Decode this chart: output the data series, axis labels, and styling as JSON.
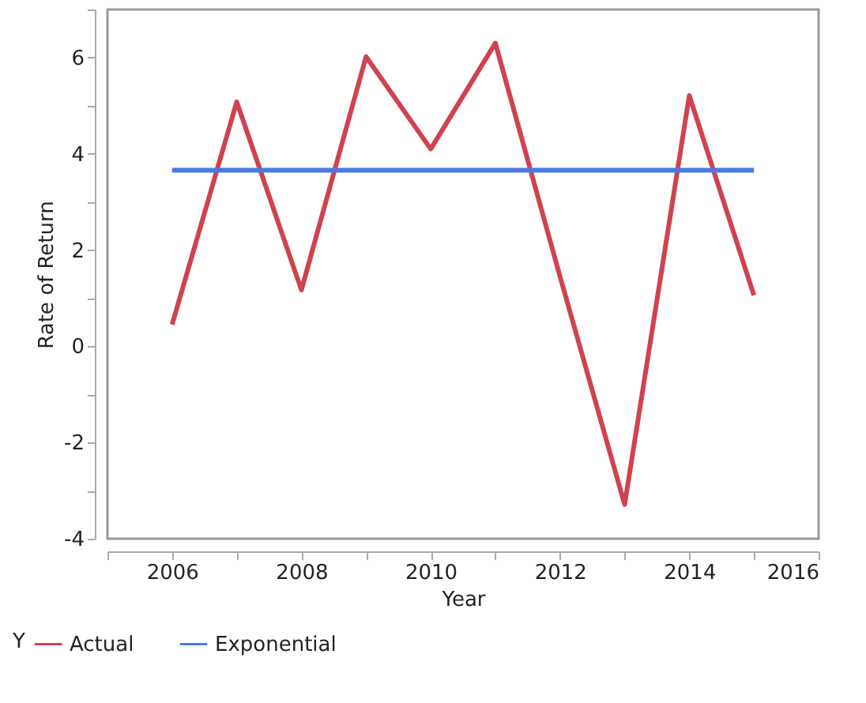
{
  "chart_data": {
    "type": "line",
    "xlabel": "Year",
    "ylabel": "Rate of Return",
    "legend_title": "Y",
    "legend": "bottom left",
    "grid": false,
    "x": [
      2006,
      2007,
      2008,
      2009,
      2010,
      2011,
      2012,
      2013,
      2014,
      2015
    ],
    "series": [
      {
        "name": "Actual",
        "color": "#d0424f",
        "values": [
          0.45,
          5.08,
          1.17,
          6.02,
          4.1,
          6.3,
          1.45,
          -3.29,
          5.21,
          1.06
        ]
      },
      {
        "name": "Exponential",
        "color": "#4a78e6",
        "values": [
          3.66,
          3.66,
          3.66,
          3.66,
          3.66,
          3.66,
          3.66,
          3.66,
          3.66,
          3.66
        ]
      }
    ],
    "xlim": [
      2005,
      2016
    ],
    "xticks": [
      {
        "value": 2005,
        "label": null
      },
      2006,
      {
        "value": 2007,
        "label": null
      },
      2008,
      {
        "value": 2009,
        "label": null
      },
      2010,
      {
        "value": 2011,
        "label": null
      },
      2012,
      {
        "value": 2013,
        "label": null
      },
      2014,
      {
        "value": 2015,
        "label": null
      },
      2016
    ],
    "ylim": [
      -4,
      7
    ],
    "yticks": [
      -4,
      {
        "value": -3,
        "label": null
      },
      -2,
      {
        "value": -1,
        "label": null
      },
      0,
      {
        "value": 1,
        "label": null
      },
      2,
      {
        "value": 3,
        "label": null
      },
      4,
      {
        "value": 5,
        "label": null
      },
      6,
      {
        "value": 7,
        "label": null
      }
    ],
    "line_style": "solid",
    "marker": "none"
  }
}
